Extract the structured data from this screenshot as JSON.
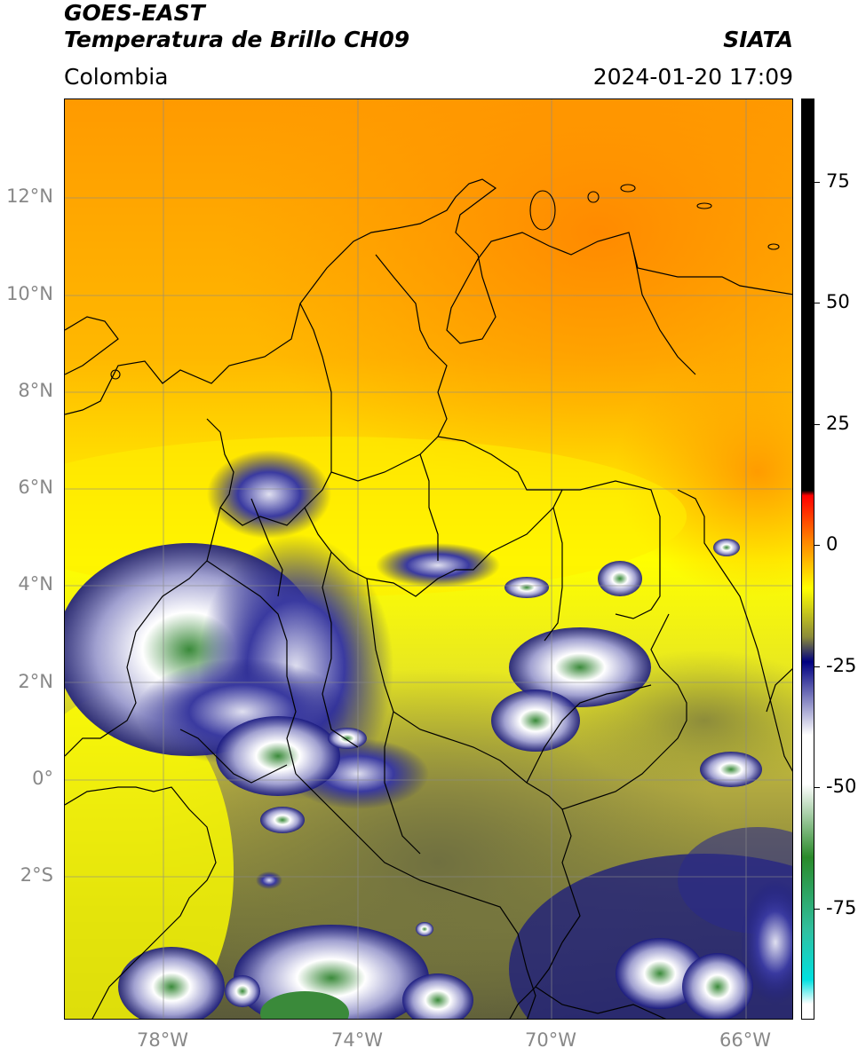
{
  "header": {
    "satellite": "GOES-EAST",
    "product": "Temperatura de Brillo CH09",
    "source": "SIATA",
    "region": "Colombia",
    "timestamp": "2024-01-20 17:09"
  },
  "map": {
    "lat_labels": [
      "12°N",
      "10°N",
      "8°N",
      "6°N",
      "4°N",
      "2°N",
      "0°",
      "2°S"
    ],
    "lon_labels": [
      "78°W",
      "74°W",
      "70°W",
      "66°W"
    ],
    "colors": {
      "warm_orange": "#ff9900",
      "yellow": "#ffff00",
      "olive": "#8a8a3a",
      "navy": "#1a1a80",
      "white": "#ffffff",
      "green": "#3a8a3a"
    }
  },
  "colorbar": {
    "labels": [
      "75",
      "50",
      "25",
      "0",
      "-25",
      "-50",
      "-75"
    ],
    "stops": [
      {
        "value": 90,
        "color": "#000000"
      },
      {
        "value": 10,
        "color": "#000000"
      },
      {
        "value": 9,
        "color": "#ff0000"
      },
      {
        "value": 0,
        "color": "#ff8000"
      },
      {
        "value": -10,
        "color": "#ffff00"
      },
      {
        "value": -20,
        "color": "#8a8a3a"
      },
      {
        "value": -25,
        "color": "#000080"
      },
      {
        "value": -40,
        "color": "#ffffff"
      },
      {
        "value": -50,
        "color": "#ffffff"
      },
      {
        "value": -65,
        "color": "#2a8a2a"
      },
      {
        "value": -80,
        "color": "#30c0a0"
      },
      {
        "value": -90,
        "color": "#00e0e0"
      },
      {
        "value": -95,
        "color": "#ffffff"
      }
    ]
  }
}
